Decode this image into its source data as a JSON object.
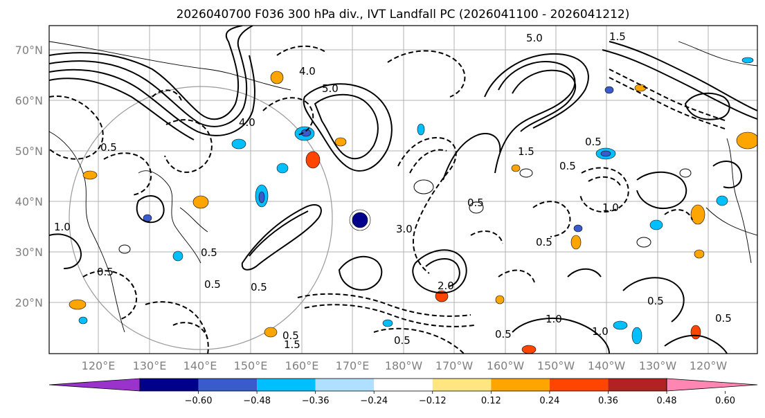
{
  "title": "2026040700 F036 300 hPa div., IVT Landfall PC (2026041100 - 2026041212)",
  "lat_labels": [
    "70°N",
    "60°N",
    "50°N",
    "40°N",
    "30°N",
    "20°N"
  ],
  "lon_labels": [
    "120°E",
    "130°E",
    "140°E",
    "150°E",
    "160°E",
    "170°E",
    "180°W",
    "170°W",
    "160°W",
    "150°W",
    "140°W",
    "130°W",
    "120°W"
  ],
  "colorbar": {
    "colors": [
      "#9933cc",
      "#00008b",
      "#3a5bcc",
      "#00bfff",
      "#b0e0ff",
      "#ffffff",
      "#ffe680",
      "#ffa500",
      "#ff4500",
      "#b22222",
      "#ff85b3"
    ],
    "ticks": [
      "−0.60",
      "−0.48",
      "−0.36",
      "−0.24",
      "−0.12",
      "0.12",
      "0.24",
      "0.36",
      "0.48",
      "0.60"
    ]
  },
  "contour_labels": [
    "4.0",
    "5.0",
    "5.0",
    "4.0",
    "1.5",
    "0.5",
    "0.5",
    "0.5",
    "1.0",
    "0.5",
    "0.5",
    "3.0",
    "0.5",
    "0.5",
    "1.5",
    "1.0",
    "0.5",
    "0.5",
    "1.0",
    "0.5",
    "0.5",
    "0.5",
    "1.0",
    "0.5",
    "1.5",
    "0.5",
    "2.0"
  ]
}
